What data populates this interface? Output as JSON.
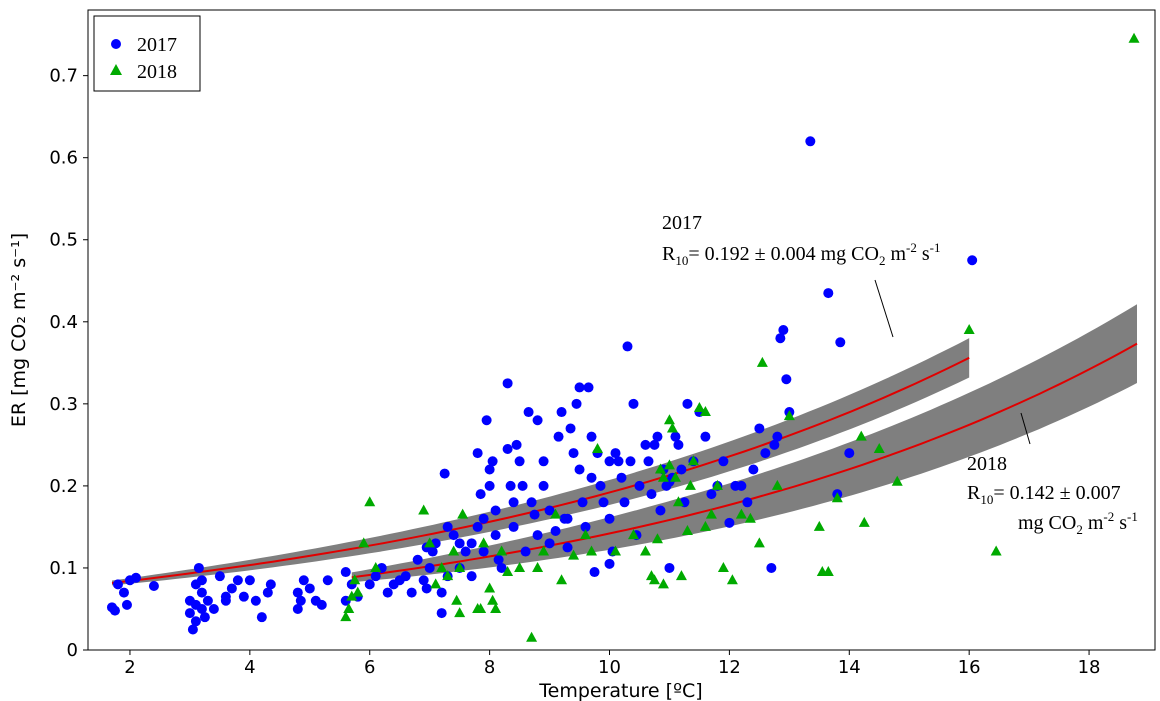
{
  "chart_data": {
    "type": "scatter",
    "xlabel": "Temperature [ºC]",
    "ylabel": "ER [mg CO₂ m⁻² s⁻¹]",
    "xlim": [
      1.3,
      19.1
    ],
    "ylim": [
      0,
      0.78
    ],
    "xticks": [
      "2",
      "4",
      "6",
      "8",
      "10",
      "12",
      "14",
      "16",
      "18"
    ],
    "xtick_values": [
      2,
      4,
      6,
      8,
      10,
      12,
      14,
      16,
      18
    ],
    "yticks": [
      "0",
      "0.1",
      "0.2",
      "0.3",
      "0.4",
      "0.5",
      "0.6",
      "0.7"
    ],
    "ytick_values": [
      0,
      0.1,
      0.2,
      0.3,
      0.4,
      0.5,
      0.6,
      0.7
    ],
    "legend": {
      "position": "top-left",
      "entries": [
        "2017",
        "2018"
      ]
    },
    "grid": false,
    "series": [
      {
        "name": "2017",
        "marker": "circle",
        "color": "#0000ff",
        "points": [
          [
            1.7,
            0.052
          ],
          [
            1.75,
            0.048
          ],
          [
            1.8,
            0.08
          ],
          [
            1.9,
            0.07
          ],
          [
            2.0,
            0.085
          ],
          [
            2.1,
            0.088
          ],
          [
            2.4,
            0.078
          ],
          [
            1.95,
            0.055
          ],
          [
            3.0,
            0.06
          ],
          [
            3.0,
            0.045
          ],
          [
            3.05,
            0.025
          ],
          [
            3.1,
            0.055
          ],
          [
            3.1,
            0.08
          ],
          [
            3.15,
            0.1
          ],
          [
            3.2,
            0.07
          ],
          [
            3.2,
            0.05
          ],
          [
            3.25,
            0.04
          ],
          [
            3.1,
            0.035
          ],
          [
            3.3,
            0.06
          ],
          [
            3.2,
            0.085
          ],
          [
            3.4,
            0.05
          ],
          [
            3.5,
            0.09
          ],
          [
            3.6,
            0.06
          ],
          [
            3.7,
            0.075
          ],
          [
            3.8,
            0.085
          ],
          [
            3.9,
            0.065
          ],
          [
            4.0,
            0.085
          ],
          [
            4.1,
            0.06
          ],
          [
            4.2,
            0.04
          ],
          [
            4.3,
            0.07
          ],
          [
            4.35,
            0.08
          ],
          [
            3.6,
            0.065
          ],
          [
            4.8,
            0.07
          ],
          [
            4.85,
            0.06
          ],
          [
            4.9,
            0.085
          ],
          [
            5.0,
            0.075
          ],
          [
            5.1,
            0.06
          ],
          [
            5.2,
            0.055
          ],
          [
            5.3,
            0.085
          ],
          [
            4.8,
            0.05
          ],
          [
            5.6,
            0.095
          ],
          [
            5.7,
            0.08
          ],
          [
            5.8,
            0.065
          ],
          [
            6.0,
            0.08
          ],
          [
            6.1,
            0.09
          ],
          [
            6.2,
            0.1
          ],
          [
            6.3,
            0.07
          ],
          [
            6.4,
            0.08
          ],
          [
            6.5,
            0.085
          ],
          [
            6.6,
            0.09
          ],
          [
            6.7,
            0.07
          ],
          [
            6.8,
            0.11
          ],
          [
            6.9,
            0.085
          ],
          [
            6.95,
            0.125
          ],
          [
            7.0,
            0.1
          ],
          [
            7.05,
            0.12
          ],
          [
            7.1,
            0.13
          ],
          [
            7.2,
            0.07
          ],
          [
            7.25,
            0.215
          ],
          [
            7.3,
            0.15
          ],
          [
            7.3,
            0.09
          ],
          [
            7.4,
            0.14
          ],
          [
            7.5,
            0.13
          ],
          [
            7.5,
            0.1
          ],
          [
            7.6,
            0.12
          ],
          [
            7.7,
            0.13
          ],
          [
            7.8,
            0.15
          ],
          [
            7.8,
            0.24
          ],
          [
            7.85,
            0.19
          ],
          [
            7.9,
            0.16
          ],
          [
            7.9,
            0.12
          ],
          [
            7.95,
            0.28
          ],
          [
            8.0,
            0.22
          ],
          [
            8.0,
            0.2
          ],
          [
            8.05,
            0.23
          ],
          [
            8.1,
            0.17
          ],
          [
            8.1,
            0.14
          ],
          [
            8.15,
            0.11
          ],
          [
            8.2,
            0.1
          ],
          [
            8.3,
            0.325
          ],
          [
            8.3,
            0.245
          ],
          [
            8.35,
            0.2
          ],
          [
            8.4,
            0.18
          ],
          [
            8.4,
            0.15
          ],
          [
            8.45,
            0.25
          ],
          [
            8.5,
            0.23
          ],
          [
            8.55,
            0.2
          ],
          [
            8.6,
            0.12
          ],
          [
            8.65,
            0.29
          ],
          [
            8.7,
            0.18
          ],
          [
            8.75,
            0.165
          ],
          [
            8.8,
            0.14
          ],
          [
            8.8,
            0.28
          ],
          [
            8.9,
            0.2
          ],
          [
            9.0,
            0.17
          ],
          [
            9.0,
            0.13
          ],
          [
            9.1,
            0.145
          ],
          [
            9.15,
            0.26
          ],
          [
            9.2,
            0.29
          ],
          [
            9.25,
            0.16
          ],
          [
            9.3,
            0.125
          ],
          [
            9.35,
            0.27
          ],
          [
            9.4,
            0.24
          ],
          [
            9.45,
            0.3
          ],
          [
            9.5,
            0.32
          ],
          [
            9.5,
            0.22
          ],
          [
            9.55,
            0.18
          ],
          [
            9.6,
            0.15
          ],
          [
            9.65,
            0.32
          ],
          [
            9.7,
            0.26
          ],
          [
            9.7,
            0.21
          ],
          [
            9.75,
            0.095
          ],
          [
            9.8,
            0.24
          ],
          [
            9.85,
            0.2
          ],
          [
            9.9,
            0.18
          ],
          [
            10.0,
            0.23
          ],
          [
            10.0,
            0.16
          ],
          [
            10.05,
            0.12
          ],
          [
            10.1,
            0.24
          ],
          [
            10.15,
            0.23
          ],
          [
            10.2,
            0.21
          ],
          [
            10.25,
            0.18
          ],
          [
            10.3,
            0.37
          ],
          [
            10.35,
            0.23
          ],
          [
            10.4,
            0.3
          ],
          [
            10.45,
            0.14
          ],
          [
            10.5,
            0.2
          ],
          [
            10.6,
            0.25
          ],
          [
            10.65,
            0.23
          ],
          [
            10.7,
            0.19
          ],
          [
            10.75,
            0.25
          ],
          [
            10.8,
            0.26
          ],
          [
            10.85,
            0.17
          ],
          [
            10.9,
            0.22
          ],
          [
            10.95,
            0.2
          ],
          [
            11.0,
            0.205
          ],
          [
            11.05,
            0.21
          ],
          [
            11.1,
            0.26
          ],
          [
            11.15,
            0.25
          ],
          [
            11.2,
            0.22
          ],
          [
            11.25,
            0.18
          ],
          [
            11.3,
            0.3
          ],
          [
            11.4,
            0.23
          ],
          [
            11.5,
            0.29
          ],
          [
            11.6,
            0.26
          ],
          [
            11.7,
            0.19
          ],
          [
            11.8,
            0.2
          ],
          [
            11.9,
            0.23
          ],
          [
            12.0,
            0.155
          ],
          [
            12.1,
            0.2
          ],
          [
            12.2,
            0.2
          ],
          [
            12.3,
            0.18
          ],
          [
            12.4,
            0.22
          ],
          [
            12.5,
            0.27
          ],
          [
            12.6,
            0.24
          ],
          [
            12.7,
            0.1
          ],
          [
            12.75,
            0.25
          ],
          [
            12.8,
            0.26
          ],
          [
            12.85,
            0.38
          ],
          [
            12.9,
            0.39
          ],
          [
            12.95,
            0.33
          ],
          [
            13.0,
            0.29
          ],
          [
            13.35,
            0.62
          ],
          [
            13.65,
            0.435
          ],
          [
            13.8,
            0.19
          ],
          [
            13.85,
            0.375
          ],
          [
            14.0,
            0.24
          ],
          [
            16.05,
            0.475
          ],
          [
            11.0,
            0.1
          ],
          [
            10.0,
            0.105
          ],
          [
            9.3,
            0.16
          ],
          [
            8.9,
            0.23
          ],
          [
            7.7,
            0.09
          ],
          [
            6.95,
            0.075
          ],
          [
            5.6,
            0.06
          ],
          [
            7.2,
            0.045
          ]
        ]
      },
      {
        "name": "2018",
        "marker": "triangle",
        "color": "#00aa00",
        "points": [
          [
            5.6,
            0.04
          ],
          [
            5.65,
            0.05
          ],
          [
            5.7,
            0.065
          ],
          [
            5.75,
            0.085
          ],
          [
            5.8,
            0.07
          ],
          [
            5.9,
            0.13
          ],
          [
            6.0,
            0.18
          ],
          [
            6.1,
            0.1
          ],
          [
            6.9,
            0.17
          ],
          [
            7.0,
            0.13
          ],
          [
            7.1,
            0.08
          ],
          [
            7.2,
            0.1
          ],
          [
            7.3,
            0.09
          ],
          [
            7.4,
            0.12
          ],
          [
            7.45,
            0.06
          ],
          [
            7.5,
            0.1
          ],
          [
            7.55,
            0.165
          ],
          [
            7.8,
            0.05
          ],
          [
            7.85,
            0.05
          ],
          [
            7.9,
            0.13
          ],
          [
            8.0,
            0.075
          ],
          [
            8.05,
            0.06
          ],
          [
            8.1,
            0.05
          ],
          [
            8.2,
            0.12
          ],
          [
            8.3,
            0.095
          ],
          [
            8.5,
            0.1
          ],
          [
            8.7,
            0.015
          ],
          [
            8.9,
            0.12
          ],
          [
            9.2,
            0.085
          ],
          [
            9.4,
            0.115
          ],
          [
            9.6,
            0.14
          ],
          [
            9.7,
            0.12
          ],
          [
            9.8,
            0.245
          ],
          [
            10.1,
            0.12
          ],
          [
            10.4,
            0.14
          ],
          [
            10.6,
            0.12
          ],
          [
            10.7,
            0.09
          ],
          [
            10.75,
            0.085
          ],
          [
            10.8,
            0.135
          ],
          [
            10.85,
            0.22
          ],
          [
            10.9,
            0.08
          ],
          [
            11.0,
            0.28
          ],
          [
            11.05,
            0.27
          ],
          [
            11.1,
            0.21
          ],
          [
            11.15,
            0.18
          ],
          [
            11.2,
            0.09
          ],
          [
            11.3,
            0.145
          ],
          [
            11.35,
            0.2
          ],
          [
            11.4,
            0.23
          ],
          [
            11.5,
            0.295
          ],
          [
            11.6,
            0.29
          ],
          [
            11.7,
            0.165
          ],
          [
            11.8,
            0.2
          ],
          [
            11.9,
            0.1
          ],
          [
            12.05,
            0.085
          ],
          [
            12.2,
            0.165
          ],
          [
            12.35,
            0.16
          ],
          [
            12.5,
            0.13
          ],
          [
            12.55,
            0.35
          ],
          [
            12.8,
            0.2
          ],
          [
            13.0,
            0.285
          ],
          [
            13.5,
            0.15
          ],
          [
            13.55,
            0.095
          ],
          [
            13.65,
            0.095
          ],
          [
            13.8,
            0.185
          ],
          [
            14.2,
            0.26
          ],
          [
            14.25,
            0.155
          ],
          [
            14.5,
            0.245
          ],
          [
            14.8,
            0.205
          ],
          [
            16.0,
            0.39
          ],
          [
            16.45,
            0.12
          ],
          [
            18.75,
            0.745
          ],
          [
            11.0,
            0.225
          ],
          [
            10.9,
            0.21
          ],
          [
            11.6,
            0.15
          ],
          [
            9.1,
            0.165
          ],
          [
            7.5,
            0.045
          ],
          [
            8.8,
            0.1
          ]
        ]
      }
    ],
    "fits": [
      {
        "name": "2017",
        "R10": 0.192,
        "Q10": 2.8,
        "x_range": [
          1.7,
          16.0
        ],
        "band": 0.006,
        "color": "#e00000"
      },
      {
        "name": "2018",
        "R10": 0.142,
        "Q10": 3.0,
        "x_range": [
          5.7,
          18.8
        ],
        "band": 0.012,
        "color": "#e00000"
      }
    ],
    "band_color": "#7f7f7f",
    "annotations": {
      "a2017": {
        "year": "2017",
        "r_label": "R",
        "r_sub": "10",
        "value": "= 0.192 ± 0.004  mg CO",
        "co2_sub": "2",
        "m": " m",
        "m_sup": "-2",
        "s": " s",
        "s_sup": "-1"
      },
      "a2018": {
        "year": "2018",
        "r_label": "R",
        "r_sub": "10",
        "value": "= 0.142 ± 0.007",
        "unit": "mg CO",
        "co2_sub": "2",
        "m": " m",
        "m_sup": "-2",
        "s": " s",
        "s_sup": "-1"
      }
    }
  }
}
